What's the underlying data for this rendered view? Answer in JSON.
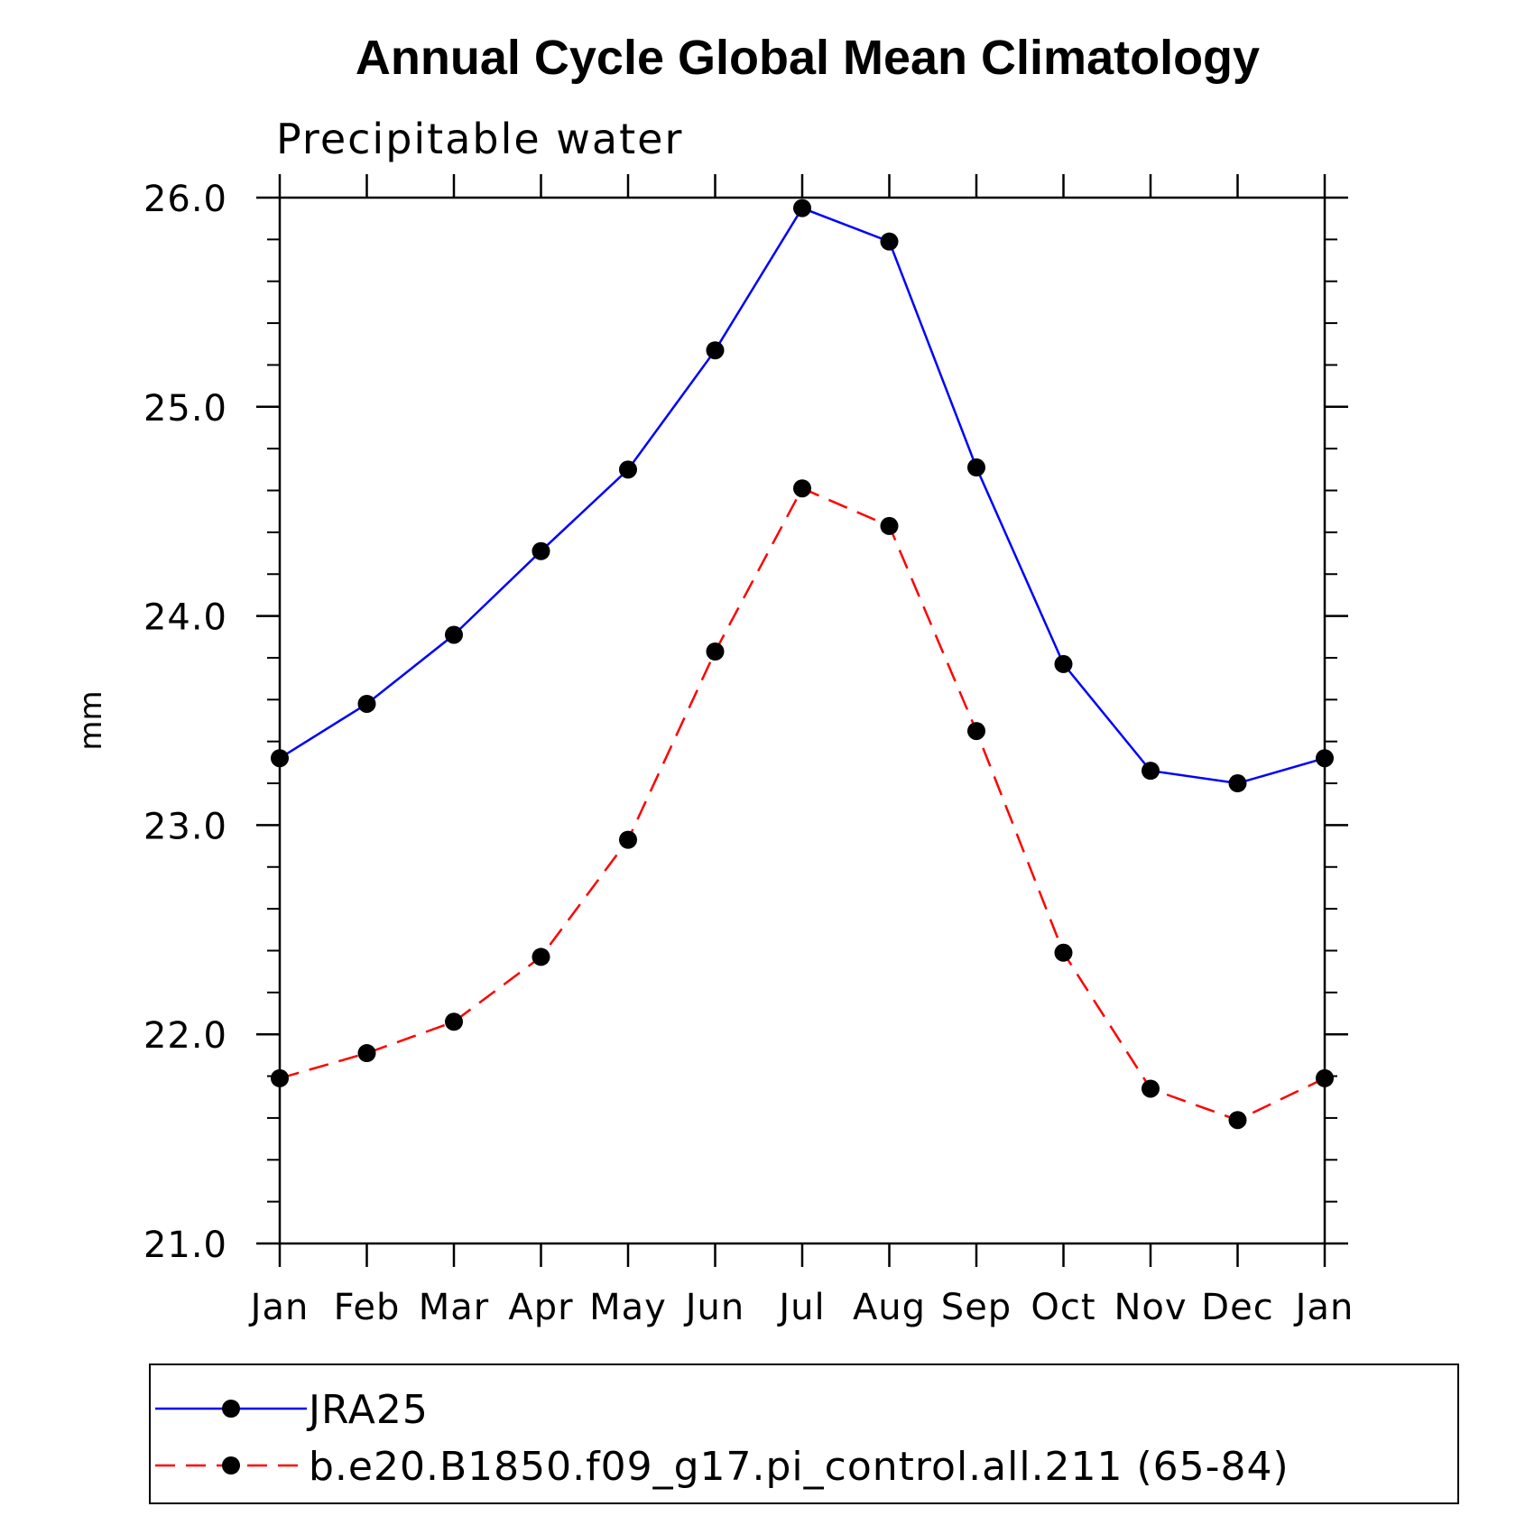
{
  "chart_data": {
    "type": "line",
    "title": "Annual Cycle Global Mean Climatology",
    "subtitle": "Precipitable water",
    "xlabel": "",
    "ylabel": "mm",
    "categories": [
      "Jan",
      "Feb",
      "Mar",
      "Apr",
      "May",
      "Jun",
      "Jul",
      "Aug",
      "Sep",
      "Oct",
      "Nov",
      "Dec",
      "Jan"
    ],
    "ylim": [
      21.0,
      26.0
    ],
    "yticks": [
      21.0,
      22.0,
      23.0,
      24.0,
      25.0,
      26.0
    ],
    "ytick_labels": [
      "21.0",
      "22.0",
      "23.0",
      "24.0",
      "25.0",
      "26.0"
    ],
    "grid": false,
    "legend_position": "bottom",
    "series": [
      {
        "name": "JRA25",
        "color": "#0000ff",
        "line_style": "solid",
        "marker": "filled-circle",
        "values": [
          23.32,
          23.58,
          23.91,
          24.31,
          24.7,
          25.27,
          25.95,
          25.79,
          24.71,
          23.77,
          23.26,
          23.2,
          23.32
        ]
      },
      {
        "name": "b.e20.B1850.f09_g17.pi_control.all.211 (65-84)",
        "color": "#ff0000",
        "line_style": "dashed",
        "marker": "filled-circle",
        "values": [
          21.79,
          21.91,
          22.06,
          22.37,
          22.93,
          23.83,
          24.61,
          24.43,
          23.45,
          22.39,
          21.74,
          21.59,
          21.79
        ]
      }
    ]
  }
}
